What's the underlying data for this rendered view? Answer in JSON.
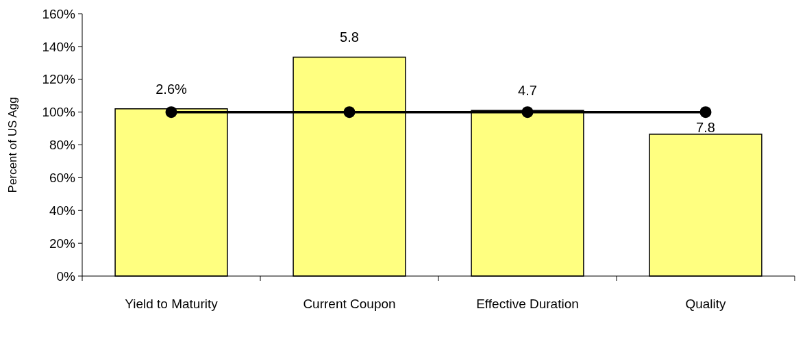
{
  "chart_data": {
    "type": "bar",
    "ylabel": "Percent of US Agg",
    "categories": [
      "Yield to Maturity",
      "Current Coupon",
      "Effective Duration",
      "Quality"
    ],
    "series": [
      {
        "color": "#ffff80",
        "values": [
          102,
          133.5,
          101,
          86.5
        ]
      },
      {
        "type": "line",
        "color": "#000000",
        "values": [
          100,
          100,
          100,
          100
        ],
        "marker": "circle",
        "line_style": "solid"
      }
    ],
    "annotations": [
      {
        "text": "2.6%",
        "x": "Yield to Maturity",
        "y": 102
      },
      {
        "text": "5.8",
        "x": "Current Coupon",
        "y": 133.5
      },
      {
        "text": "4.7",
        "x": "Effective Duration",
        "y": 101
      },
      {
        "text": "7.8",
        "x": "Quality",
        "y": 86.5
      }
    ],
    "ylim": [
      0,
      160
    ],
    "yticks": [
      {
        "value": 0,
        "label": "0%"
      },
      {
        "value": 20,
        "label": "20%"
      },
      {
        "value": 40,
        "label": "40%"
      },
      {
        "value": 60,
        "label": "60%"
      },
      {
        "value": 80,
        "label": "80%"
      },
      {
        "value": 100,
        "label": "100%"
      },
      {
        "value": 120,
        "label": "120%"
      },
      {
        "value": 140,
        "label": "140%"
      },
      {
        "value": 160,
        "label": "160%"
      }
    ],
    "grid": false
  }
}
